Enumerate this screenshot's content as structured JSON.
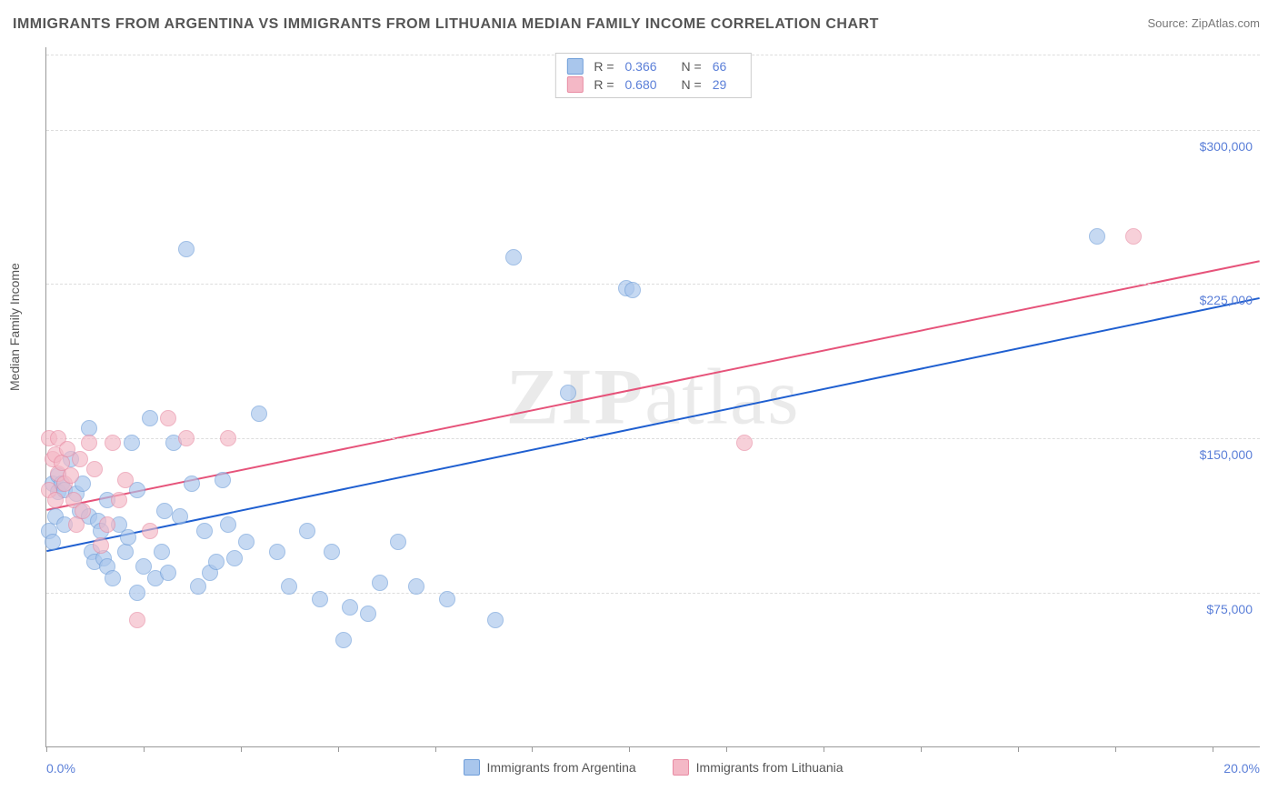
{
  "title": "IMMIGRANTS FROM ARGENTINA VS IMMIGRANTS FROM LITHUANIA MEDIAN FAMILY INCOME CORRELATION CHART",
  "source": "Source: ZipAtlas.com",
  "watermark": "ZIPatlas",
  "ylabel": "Median Family Income",
  "chart": {
    "type": "scatter",
    "xlim": [
      0,
      20
    ],
    "ylim": [
      0,
      340000
    ],
    "x_ticks": [
      0,
      1.6,
      3.2,
      4.8,
      6.4,
      8.0,
      9.6,
      11.2,
      12.8,
      14.4,
      16.0,
      17.6,
      19.2
    ],
    "x_tick_labels": {
      "0": "0.0%",
      "20": "20.0%"
    },
    "y_gridlines": [
      75000,
      150000,
      225000,
      300000
    ],
    "y_tick_labels": [
      "$75,000",
      "$150,000",
      "$225,000",
      "$300,000"
    ],
    "background_color": "#ffffff",
    "grid_color": "#dddddd",
    "axis_color": "#999999",
    "series": [
      {
        "name": "Immigrants from Argentina",
        "fill_color": "#a9c6ec",
        "fill_opacity": 0.65,
        "stroke_color": "#6f9ed9",
        "line_color": "#1f5fd0",
        "marker_radius": 9,
        "R": 0.366,
        "N": 66,
        "trend": {
          "x1": 0,
          "y1": 95000,
          "x2": 20,
          "y2": 218000
        },
        "points": [
          [
            0.05,
            105000
          ],
          [
            0.1,
            128000
          ],
          [
            0.1,
            100000
          ],
          [
            0.15,
            112000
          ],
          [
            0.2,
            132000
          ],
          [
            0.2,
            124000
          ],
          [
            0.25,
            128000
          ],
          [
            0.3,
            108000
          ],
          [
            0.3,
            125000
          ],
          [
            0.4,
            140000
          ],
          [
            0.5,
            123000
          ],
          [
            0.55,
            115000
          ],
          [
            0.6,
            128000
          ],
          [
            0.7,
            155000
          ],
          [
            0.7,
            112000
          ],
          [
            0.75,
            95000
          ],
          [
            0.8,
            90000
          ],
          [
            0.85,
            110000
          ],
          [
            0.9,
            105000
          ],
          [
            0.95,
            92000
          ],
          [
            1.0,
            120000
          ],
          [
            1.0,
            88000
          ],
          [
            1.1,
            82000
          ],
          [
            1.2,
            108000
          ],
          [
            1.3,
            95000
          ],
          [
            1.35,
            102000
          ],
          [
            1.4,
            148000
          ],
          [
            1.5,
            125000
          ],
          [
            1.5,
            75000
          ],
          [
            1.6,
            88000
          ],
          [
            1.7,
            160000
          ],
          [
            1.8,
            82000
          ],
          [
            1.9,
            95000
          ],
          [
            1.95,
            115000
          ],
          [
            2.0,
            85000
          ],
          [
            2.1,
            148000
          ],
          [
            2.2,
            112000
          ],
          [
            2.3,
            242000
          ],
          [
            2.4,
            128000
          ],
          [
            2.5,
            78000
          ],
          [
            2.6,
            105000
          ],
          [
            2.7,
            85000
          ],
          [
            2.8,
            90000
          ],
          [
            2.9,
            130000
          ],
          [
            3.0,
            108000
          ],
          [
            3.1,
            92000
          ],
          [
            3.3,
            100000
          ],
          [
            3.5,
            162000
          ],
          [
            3.8,
            95000
          ],
          [
            4.0,
            78000
          ],
          [
            4.3,
            105000
          ],
          [
            4.5,
            72000
          ],
          [
            4.7,
            95000
          ],
          [
            4.9,
            52000
          ],
          [
            5.0,
            68000
          ],
          [
            5.3,
            65000
          ],
          [
            5.5,
            80000
          ],
          [
            5.8,
            100000
          ],
          [
            6.1,
            78000
          ],
          [
            6.6,
            72000
          ],
          [
            7.4,
            62000
          ],
          [
            7.7,
            238000
          ],
          [
            8.6,
            172000
          ],
          [
            9.55,
            223000
          ],
          [
            9.65,
            222000
          ],
          [
            17.3,
            248000
          ]
        ]
      },
      {
        "name": "Immigrants from Lithuania",
        "fill_color": "#f4b8c6",
        "fill_opacity": 0.65,
        "stroke_color": "#e88ba3",
        "line_color": "#e6537a",
        "marker_radius": 9,
        "R": 0.68,
        "N": 29,
        "trend": {
          "x1": 0,
          "y1": 115000,
          "x2": 20,
          "y2": 236000
        },
        "points": [
          [
            0.05,
            150000
          ],
          [
            0.05,
            125000
          ],
          [
            0.1,
            140000
          ],
          [
            0.15,
            120000
          ],
          [
            0.15,
            142000
          ],
          [
            0.2,
            150000
          ],
          [
            0.2,
            133000
          ],
          [
            0.25,
            138000
          ],
          [
            0.3,
            128000
          ],
          [
            0.35,
            145000
          ],
          [
            0.4,
            132000
          ],
          [
            0.45,
            120000
          ],
          [
            0.5,
            108000
          ],
          [
            0.55,
            140000
          ],
          [
            0.6,
            115000
          ],
          [
            0.7,
            148000
          ],
          [
            0.8,
            135000
          ],
          [
            0.9,
            98000
          ],
          [
            1.0,
            108000
          ],
          [
            1.1,
            148000
          ],
          [
            1.2,
            120000
          ],
          [
            1.3,
            130000
          ],
          [
            1.5,
            62000
          ],
          [
            1.7,
            105000
          ],
          [
            2.0,
            160000
          ],
          [
            2.3,
            150000
          ],
          [
            3.0,
            150000
          ],
          [
            11.5,
            148000
          ],
          [
            17.9,
            248000
          ]
        ]
      }
    ]
  },
  "legend_bottom": [
    {
      "swatch_fill": "#a9c6ec",
      "swatch_stroke": "#6f9ed9",
      "label": "Immigrants from Argentina"
    },
    {
      "swatch_fill": "#f4b8c6",
      "swatch_stroke": "#e88ba3",
      "label": "Immigrants from Lithuania"
    }
  ]
}
